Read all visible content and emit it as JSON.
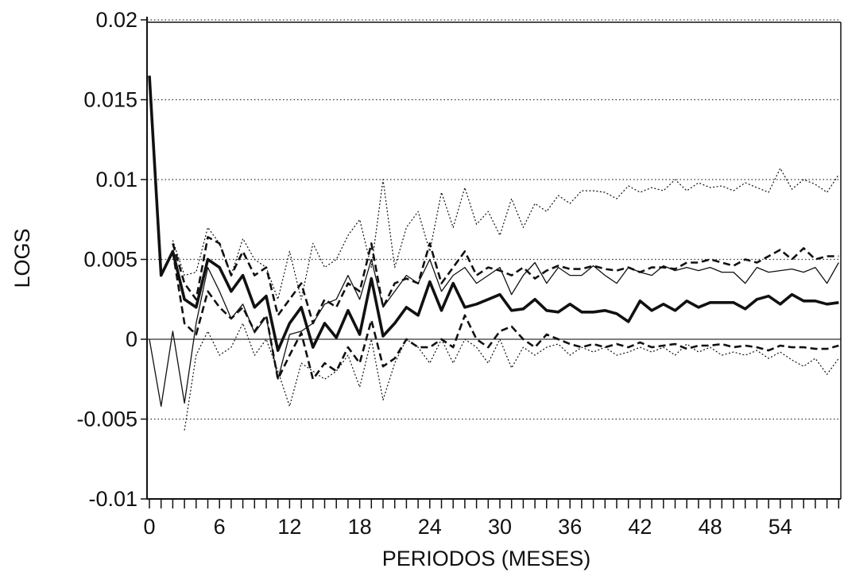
{
  "chart_data": {
    "type": "line",
    "title": "",
    "xlabel": "PERIODOS (MESES)",
    "ylabel": "LOGS",
    "xlim": [
      0,
      59
    ],
    "ylim": [
      -0.01,
      0.02
    ],
    "xticks": [
      0,
      6,
      12,
      18,
      24,
      30,
      36,
      42,
      48,
      54
    ],
    "xtick_labels": [
      "0",
      "6",
      "12",
      "18",
      "24",
      "30",
      "36",
      "42",
      "48",
      "54"
    ],
    "yticks": [
      -0.01,
      -0.005,
      0,
      0.005,
      0.01,
      0.015,
      0.02
    ],
    "ytick_labels": [
      "-0.01",
      "-0.005",
      "0",
      "0.005",
      "0.01",
      "0.015",
      "0.02"
    ],
    "grid": "horizontal dotted",
    "legend": "none",
    "series": [
      {
        "style": "thick-solid",
        "color": "#111111",
        "x": [
          0,
          1,
          2,
          3,
          4,
          5,
          6,
          7,
          8,
          9,
          10,
          11,
          12,
          13,
          14,
          15,
          16,
          17,
          18,
          19,
          20,
          21,
          22,
          23,
          24,
          25,
          26,
          27,
          28,
          29,
          30,
          31,
          32,
          33,
          34,
          35,
          36,
          37,
          38,
          39,
          40,
          41,
          42,
          43,
          44,
          45,
          46,
          47,
          48,
          49,
          50,
          51,
          52,
          53,
          54,
          55,
          56,
          57,
          58,
          59
        ],
        "values": [
          0.0165,
          0.004,
          0.0055,
          0.0025,
          0.002,
          0.005,
          0.0045,
          0.003,
          0.004,
          0.002,
          0.0027,
          -0.0007,
          0.001,
          0.002,
          -0.0005,
          0.001,
          0.0001,
          0.0018,
          0.0003,
          0.0038,
          0.0002,
          0.001,
          0.002,
          0.0015,
          0.0036,
          0.0018,
          0.0035,
          0.002,
          0.0022,
          0.0025,
          0.0028,
          0.0018,
          0.0019,
          0.0025,
          0.0018,
          0.0017,
          0.0022,
          0.0017,
          0.0017,
          0.0018,
          0.0016,
          0.0011,
          0.0024,
          0.0018,
          0.0022,
          0.0018,
          0.0024,
          0.002,
          0.0023,
          0.0023,
          0.0023,
          0.0019,
          0.0025,
          0.0027,
          0.0022,
          0.0028,
          0.0024,
          0.0024,
          0.0022,
          0.0023
        ]
      },
      {
        "style": "thin-solid",
        "color": "#111111",
        "x": [
          0,
          1,
          2,
          3,
          4,
          5,
          6,
          7,
          8,
          9,
          10,
          11,
          12,
          13,
          14,
          15,
          16,
          17,
          18,
          19,
          20,
          21,
          22,
          23,
          24,
          25,
          26,
          27,
          28,
          29,
          30,
          31,
          32,
          33,
          34,
          35,
          36,
          37,
          38,
          39,
          40,
          41,
          42,
          43,
          44,
          45,
          46,
          47,
          48,
          49,
          50,
          51,
          52,
          53,
          54,
          55,
          56,
          57,
          58,
          59
        ],
        "values": [
          0.0,
          -0.0042,
          0.0005,
          -0.004,
          0.001,
          0.0045,
          0.003,
          0.0013,
          0.0022,
          0.0004,
          0.0014,
          -0.0025,
          0.0003,
          0.0005,
          0.001,
          0.0022,
          0.0025,
          0.004,
          0.0025,
          0.005,
          0.002,
          0.003,
          0.004,
          0.0035,
          0.005,
          0.003,
          0.004,
          0.0045,
          0.0035,
          0.004,
          0.0045,
          0.0028,
          0.004,
          0.0048,
          0.0035,
          0.0045,
          0.004,
          0.004,
          0.0046,
          0.004,
          0.0035,
          0.0045,
          0.0042,
          0.004,
          0.0046,
          0.0043,
          0.0045,
          0.0043,
          0.0045,
          0.0042,
          0.0042,
          0.0035,
          0.0045,
          0.0042,
          0.0043,
          0.0044,
          0.0042,
          0.0045,
          0.0035,
          0.0048
        ]
      },
      {
        "style": "dashed-upper",
        "color": "#111111",
        "x": [
          0,
          1,
          2,
          3,
          4,
          5,
          6,
          7,
          8,
          9,
          10,
          11,
          12,
          13,
          14,
          15,
          16,
          17,
          18,
          19,
          20,
          21,
          22,
          23,
          24,
          25,
          26,
          27,
          28,
          29,
          30,
          31,
          32,
          33,
          34,
          35,
          36,
          37,
          38,
          39,
          40,
          41,
          42,
          43,
          44,
          45,
          46,
          47,
          48,
          49,
          50,
          51,
          52,
          53,
          54,
          55,
          56,
          57,
          58,
          59
        ],
        "values": [
          null,
          null,
          0.006,
          0.0035,
          0.0025,
          0.0064,
          0.006,
          0.004,
          0.0055,
          0.004,
          0.0045,
          0.0015,
          0.0025,
          0.0035,
          0.001,
          0.0025,
          0.002,
          0.0035,
          0.003,
          0.006,
          0.002,
          0.0035,
          0.0038,
          0.0035,
          0.006,
          0.0035,
          0.0045,
          0.0055,
          0.004,
          0.0045,
          0.0043,
          0.004,
          0.0045,
          0.0038,
          0.0043,
          0.0046,
          0.0044,
          0.0044,
          0.0046,
          0.0044,
          0.0043,
          0.0045,
          0.0042,
          0.0045,
          0.0045,
          0.0044,
          0.0048,
          0.0048,
          0.005,
          0.0048,
          0.0046,
          0.005,
          0.0048,
          0.0052,
          0.0056,
          0.005,
          0.0057,
          0.005,
          0.0052,
          0.0052
        ]
      },
      {
        "style": "dashed-lower",
        "color": "#111111",
        "x": [
          0,
          1,
          2,
          3,
          4,
          5,
          6,
          7,
          8,
          9,
          10,
          11,
          12,
          13,
          14,
          15,
          16,
          17,
          18,
          19,
          20,
          21,
          22,
          23,
          24,
          25,
          26,
          27,
          28,
          29,
          30,
          31,
          32,
          33,
          34,
          35,
          36,
          37,
          38,
          39,
          40,
          41,
          42,
          43,
          44,
          45,
          46,
          47,
          48,
          49,
          50,
          51,
          52,
          53,
          54,
          55,
          56,
          57,
          58,
          59
        ],
        "values": [
          null,
          null,
          0.0055,
          0.001,
          0.0003,
          0.003,
          0.002,
          0.0013,
          0.002,
          0.0005,
          0.0015,
          -0.0025,
          -0.001,
          0.0004,
          -0.0025,
          -0.0015,
          -0.002,
          -0.0005,
          -0.0015,
          0.0012,
          -0.0017,
          -0.0012,
          0.0,
          -0.0005,
          -0.0005,
          0.0,
          -0.0005,
          0.0015,
          0.0,
          -0.0005,
          0.0005,
          0.0008,
          0.0,
          -0.0005,
          0.0003,
          0.0,
          -0.0003,
          -0.0005,
          -0.0003,
          -0.0005,
          -0.0003,
          -0.0005,
          -0.0002,
          -0.0005,
          -0.0004,
          -0.0003,
          -0.0006,
          -0.0004,
          -0.0004,
          -0.0003,
          -0.0005,
          -0.0004,
          -0.0005,
          -0.0007,
          -0.0004,
          -0.0005,
          -0.0005,
          -0.0006,
          -0.0006,
          -0.0004
        ]
      },
      {
        "style": "dotted-upper",
        "color": "#111111",
        "x": [
          0,
          1,
          2,
          3,
          4,
          5,
          6,
          7,
          8,
          9,
          10,
          11,
          12,
          13,
          14,
          15,
          16,
          17,
          18,
          19,
          20,
          21,
          22,
          23,
          24,
          25,
          26,
          27,
          28,
          29,
          30,
          31,
          32,
          33,
          34,
          35,
          36,
          37,
          38,
          39,
          40,
          41,
          42,
          43,
          44,
          45,
          46,
          47,
          48,
          49,
          50,
          51,
          52,
          53,
          54,
          55,
          56,
          57,
          58,
          59
        ],
        "values": [
          null,
          null,
          0.0062,
          0.004,
          0.0042,
          0.007,
          0.006,
          0.004,
          0.0063,
          0.005,
          0.0045,
          0.0025,
          0.0055,
          0.0025,
          0.006,
          0.0045,
          0.005,
          0.0065,
          0.0075,
          0.0045,
          0.01,
          0.0045,
          0.007,
          0.008,
          0.0055,
          0.0092,
          0.007,
          0.0095,
          0.0072,
          0.008,
          0.0065,
          0.0088,
          0.007,
          0.0085,
          0.008,
          0.009,
          0.0085,
          0.0093,
          0.0093,
          0.0092,
          0.0088,
          0.0096,
          0.0092,
          0.0095,
          0.0093,
          0.01,
          0.0093,
          0.0098,
          0.0095,
          0.0096,
          0.0093,
          0.0098,
          0.0095,
          0.0092,
          0.0107,
          0.0094,
          0.01,
          0.0097,
          0.0092,
          0.0103
        ]
      },
      {
        "style": "dotted-lower",
        "color": "#111111",
        "x": [
          0,
          1,
          2,
          3,
          4,
          5,
          6,
          7,
          8,
          9,
          10,
          11,
          12,
          13,
          14,
          15,
          16,
          17,
          18,
          19,
          20,
          21,
          22,
          23,
          24,
          25,
          26,
          27,
          28,
          29,
          30,
          31,
          32,
          33,
          34,
          35,
          36,
          37,
          38,
          39,
          40,
          41,
          42,
          43,
          44,
          45,
          46,
          47,
          48,
          49,
          50,
          51,
          52,
          53,
          54,
          55,
          56,
          57,
          58,
          59
        ],
        "values": [
          null,
          null,
          null,
          -0.0057,
          -0.001,
          0.0005,
          -0.001,
          -0.0005,
          0.001,
          -0.001,
          0.0,
          -0.002,
          -0.0042,
          -0.0015,
          -0.002,
          -0.0025,
          -0.002,
          -0.001,
          -0.003,
          0.0,
          -0.0038,
          -0.0015,
          0.0,
          -0.0005,
          -0.0015,
          0.0,
          -0.0015,
          0.0,
          -0.0005,
          -0.0015,
          0.0,
          -0.0018,
          -0.0005,
          -0.001,
          -0.0005,
          -0.0003,
          -0.001,
          -0.0005,
          -0.0008,
          -0.0005,
          -0.001,
          -0.0008,
          -0.0005,
          -0.0008,
          -0.0005,
          -0.001,
          -0.0003,
          -0.0008,
          -0.0005,
          -0.001,
          -0.0008,
          -0.001,
          -0.0007,
          -0.0012,
          -0.0008,
          -0.0013,
          -0.0017,
          -0.0012,
          -0.0022,
          -0.0012
        ]
      }
    ]
  }
}
